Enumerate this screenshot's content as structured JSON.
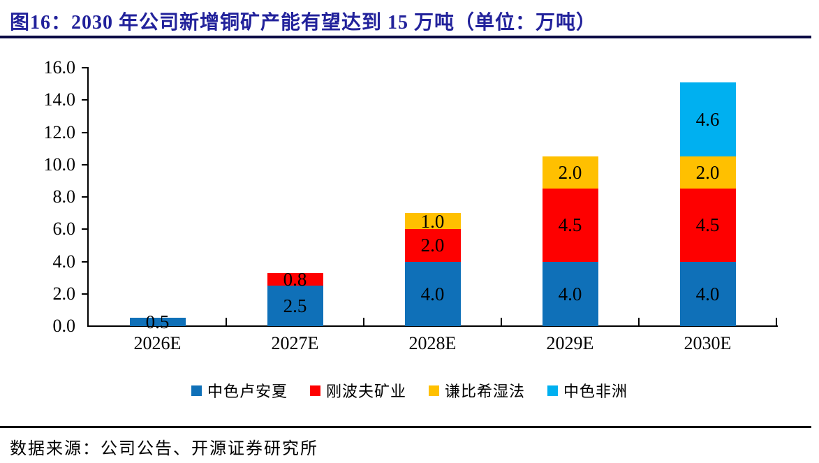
{
  "figure": {
    "title": "图16：2030 年公司新增铜矿产能有望达到 15 万吨（单位：万吨）",
    "source": "数据来源：公司公告、开源证券研究所"
  },
  "colors": {
    "title_text": "#22229B",
    "title_rule": "#0A0A44",
    "axis": "#000000",
    "bottom_rule": "#000000",
    "label_text": "#000000"
  },
  "chart_data": {
    "type": "bar",
    "stacked": true,
    "title": "2030 年公司新增铜矿产能有望达到 15 万吨",
    "unit": "万吨",
    "categories": [
      "2026E",
      "2027E",
      "2028E",
      "2029E",
      "2030E"
    ],
    "series": [
      {
        "name": "中色卢安夏",
        "color": "#0F70B8",
        "values": [
          0.5,
          2.5,
          4.0,
          4.0,
          4.0
        ]
      },
      {
        "name": "刚波夫矿业",
        "color": "#FE0000",
        "values": [
          0,
          0.8,
          2.0,
          4.5,
          4.5
        ]
      },
      {
        "name": "谦比希湿法",
        "color": "#FFC000",
        "values": [
          0,
          0,
          1.0,
          2.0,
          2.0
        ]
      },
      {
        "name": "中色非洲",
        "color": "#00B0F0",
        "values": [
          0,
          0,
          0,
          0,
          4.6
        ]
      }
    ],
    "totals": [
      0.5,
      3.3,
      7.0,
      10.5,
      15.1
    ],
    "ylim": [
      0,
      16
    ],
    "ytick_step": 2,
    "ytick_labels": [
      "0.0",
      "2.0",
      "4.0",
      "6.0",
      "8.0",
      "10.0",
      "12.0",
      "14.0",
      "16.0"
    ],
    "grid": false,
    "data_labels": true,
    "data_label_decimals": 1,
    "legend_position": "bottom"
  }
}
